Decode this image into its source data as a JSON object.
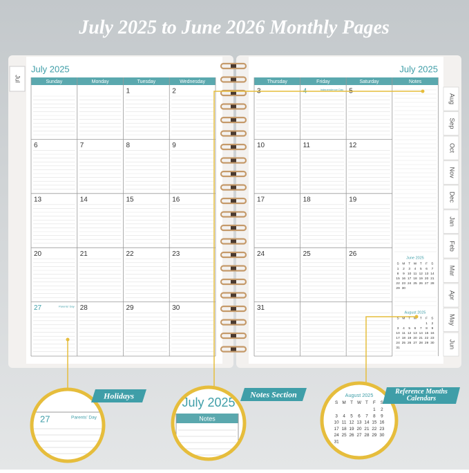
{
  "title": "July 2025 to June 2026 Monthly Pages",
  "month": "July 2025",
  "left_page": {
    "tab": "Jul",
    "weekdays": [
      "Sunday",
      "Monday",
      "Tuesday",
      "Wednesday"
    ],
    "weeks": [
      [
        null,
        null,
        1,
        2
      ],
      [
        6,
        7,
        8,
        9
      ],
      [
        13,
        14,
        15,
        16
      ],
      [
        20,
        21,
        22,
        23
      ],
      [
        {
          "day": 27,
          "note": "Parents' Day"
        },
        28,
        29,
        30
      ]
    ]
  },
  "right_page": {
    "weekdays": [
      "Thursday",
      "Friday",
      "Saturday"
    ],
    "notes": "Notes",
    "weeks": [
      [
        3,
        {
          "day": 4,
          "note": "Independence Day"
        },
        5
      ],
      [
        10,
        11,
        12
      ],
      [
        17,
        18,
        19
      ],
      [
        24,
        25,
        26
      ],
      [
        31
      ]
    ],
    "tabs": [
      "Aug",
      "Sep",
      "Oct",
      "Nov",
      "Dec",
      "Jan",
      "Feb",
      "Mar",
      "Apr",
      "May",
      "Jun"
    ]
  },
  "mini_weekdays": [
    "S",
    "M",
    "T",
    "W",
    "T",
    "F",
    "S"
  ],
  "mini_calendars": [
    {
      "title": "June 2025",
      "weeks": [
        [
          1,
          2,
          3,
          4,
          5,
          6,
          7
        ],
        [
          8,
          9,
          10,
          11,
          12,
          13,
          14
        ],
        [
          15,
          16,
          17,
          18,
          19,
          20,
          21
        ],
        [
          22,
          23,
          24,
          25,
          26,
          27,
          28
        ],
        [
          29,
          30
        ]
      ]
    },
    {
      "title": "August 2025",
      "weeks": [
        [
          null,
          null,
          null,
          null,
          null,
          1,
          2
        ],
        [
          3,
          4,
          5,
          6,
          7,
          8,
          9
        ],
        [
          10,
          11,
          12,
          13,
          14,
          15,
          16
        ],
        [
          17,
          18,
          19,
          20,
          21,
          22,
          23
        ],
        [
          24,
          25,
          26,
          27,
          28,
          29,
          30
        ],
        [
          31
        ]
      ]
    }
  ],
  "callouts": [
    "Holidays",
    "Notes Section",
    "Reference Months Calendars"
  ]
}
